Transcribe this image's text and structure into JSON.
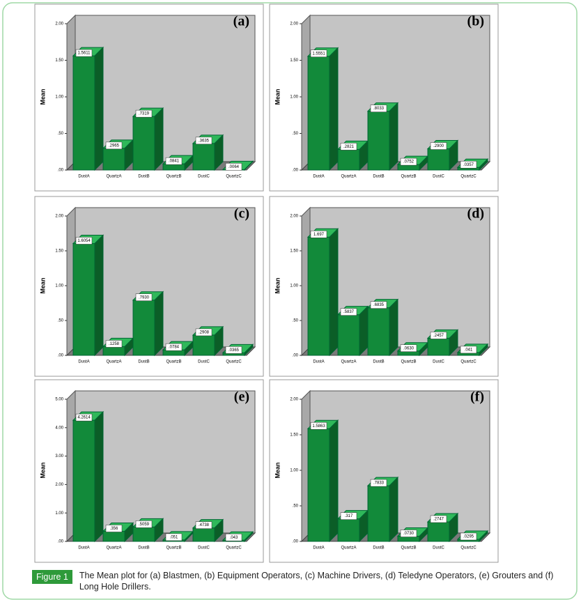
{
  "chart_data": [
    {
      "type": "bar3d",
      "panel": "(a)",
      "y_label": "Mean",
      "color": "#128a3a",
      "categories": [
        "DustA",
        "QuartzA",
        "DustB",
        "QuartzB",
        "DustC",
        "QuartzC"
      ],
      "values": [
        1.5611,
        0.2965,
        0.7319,
        0.0841,
        0.3635,
        0.0064
      ],
      "value_labels": [
        "1.5611",
        ".2965",
        ".7319",
        ".0841",
        ".3635",
        ".0064"
      ],
      "ylim": [
        0,
        2
      ],
      "yticks": [
        {
          "value": 0,
          "label": ".00"
        },
        {
          "value": 0.5,
          "label": ".50"
        },
        {
          "value": 1,
          "label": "1.00"
        },
        {
          "value": 1.5,
          "label": "1.50"
        },
        {
          "value": 2,
          "label": "2.00"
        }
      ]
    },
    {
      "type": "bar3d",
      "panel": "(b)",
      "y_label": "Mean",
      "color": "#128a3a",
      "categories": [
        "DustA",
        "QuartzA",
        "DustB",
        "QuartzB",
        "DustC",
        "QuartzC"
      ],
      "values": [
        1.5551,
        0.2821,
        0.8033,
        0.0752,
        0.29,
        0.0357
      ],
      "value_labels": [
        "1.5551",
        ".2821",
        ".8033",
        ".0752",
        ".2900",
        ".0357"
      ],
      "ylim": [
        0,
        2
      ],
      "yticks": [
        {
          "value": 0,
          "label": ".00"
        },
        {
          "value": 0.5,
          "label": ".50"
        },
        {
          "value": 1,
          "label": "1.00"
        },
        {
          "value": 1.5,
          "label": "1.50"
        },
        {
          "value": 2,
          "label": "2.00"
        }
      ]
    },
    {
      "type": "bar3d",
      "panel": "(c)",
      "y_label": "Mean",
      "color": "#128a3a",
      "categories": [
        "DustA",
        "QuartzA",
        "DustB",
        "QuartzB",
        "DustC",
        "QuartzC"
      ],
      "values": [
        1.6054,
        0.1258,
        0.793,
        0.0784,
        0.2908,
        0.0365
      ],
      "value_labels": [
        "1.6054",
        ".1258",
        ".7930",
        ".0784",
        ".2908",
        ".0365"
      ],
      "ylim": [
        0,
        2
      ],
      "yticks": [
        {
          "value": 0,
          "label": ".00"
        },
        {
          "value": 0.5,
          "label": ".50"
        },
        {
          "value": 1,
          "label": "1.00"
        },
        {
          "value": 1.5,
          "label": "1.50"
        },
        {
          "value": 2,
          "label": "2.00"
        }
      ]
    },
    {
      "type": "bar3d",
      "panel": "(d)",
      "y_label": "Mean",
      "color": "#128a3a",
      "categories": [
        "DustA",
        "QuartzA",
        "DustB",
        "QuartzB",
        "DustC",
        "QuartzC"
      ],
      "values": [
        1.697,
        0.5837,
        0.6835,
        0.063,
        0.2457,
        0.041
      ],
      "value_labels": [
        "1.697",
        ".5837",
        ".6835",
        ".0630",
        ".2457",
        ".041"
      ],
      "ylim": [
        0,
        2
      ],
      "yticks": [
        {
          "value": 0,
          "label": ".00"
        },
        {
          "value": 0.5,
          "label": ".50"
        },
        {
          "value": 1,
          "label": "1.00"
        },
        {
          "value": 1.5,
          "label": "1.50"
        },
        {
          "value": 2,
          "label": "2.00"
        }
      ]
    },
    {
      "type": "bar3d",
      "panel": "(e)",
      "y_label": "Mean",
      "color": "#128a3a",
      "categories": [
        "DustA",
        "QuartzA",
        "DustB",
        "QuartzB",
        "DustC",
        "QuartzC"
      ],
      "values": [
        4.2614,
        0.356,
        0.5059,
        0.051,
        0.4738,
        0.043
      ],
      "value_labels": [
        "4.2614",
        ".356",
        ".5059",
        ".051",
        ".4738",
        ".043"
      ],
      "ylim": [
        0,
        5
      ],
      "yticks": [
        {
          "value": 0,
          "label": ".00"
        },
        {
          "value": 1,
          "label": "1.00"
        },
        {
          "value": 2,
          "label": "2.00"
        },
        {
          "value": 3,
          "label": "3.00"
        },
        {
          "value": 4,
          "label": "4.00"
        },
        {
          "value": 5,
          "label": "5.00"
        }
      ]
    },
    {
      "type": "bar3d",
      "panel": "(f)",
      "y_label": "Mean",
      "color": "#128a3a",
      "categories": [
        "DustA",
        "QuartzA",
        "DustB",
        "QuartzB",
        "DustC",
        "QuartzC"
      ],
      "values": [
        1.5863,
        0.317,
        0.7833,
        0.073,
        0.2747,
        0.0295
      ],
      "value_labels": [
        "1.5863",
        ".317",
        ".7833",
        ".0730",
        ".2747",
        ".0295"
      ],
      "ylim": [
        0,
        2
      ],
      "yticks": [
        {
          "value": 0,
          "label": ".00"
        },
        {
          "value": 0.5,
          "label": ".50"
        },
        {
          "value": 1,
          "label": "1.00"
        },
        {
          "value": 1.5,
          "label": "1.50"
        },
        {
          "value": 2,
          "label": "2.00"
        }
      ]
    }
  ],
  "caption": {
    "label": "Figure 1",
    "text": "The Mean plot for (a) Blastmen, (b) Equipment Operators, (c) Machine Drivers, (d) Teledyne Operators, (e) Grouters and (f) Long Hole Drillers."
  }
}
